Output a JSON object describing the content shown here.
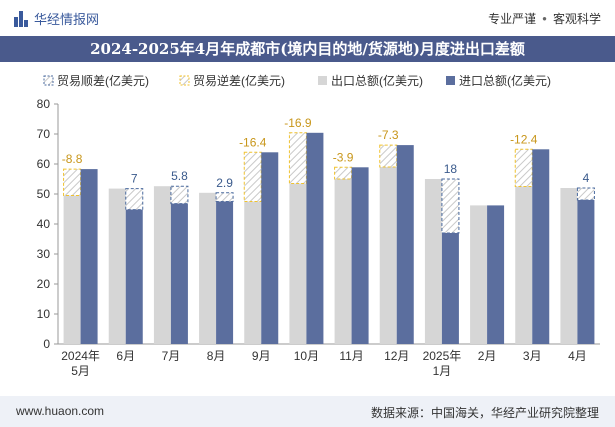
{
  "header": {
    "brand": "华经情报网",
    "right_a": "专业严谨",
    "right_sep": "●",
    "right_b": "客观科学"
  },
  "title": "2024-2025年4月年成都市(境内目的地/货源地)月度进出口差额",
  "footer": {
    "left": "www.huaon.com",
    "right": "数据来源：中国海关，华经产业研究院整理"
  },
  "watermark": "华经产业研究院",
  "colors": {
    "export": "#d6d6d6",
    "import": "#5b6e9e",
    "surplus_border": "#4a6a9e",
    "deficit_border": "#f0c22e",
    "hatch": "#c9c9c9"
  },
  "chart_data": {
    "type": "bar",
    "categories": [
      "2024年\n5月",
      "6月",
      "7月",
      "8月",
      "9月",
      "10月",
      "11月",
      "12月",
      "2025年\n1月",
      "2月",
      "3月",
      "4月"
    ],
    "series": [
      {
        "name": "出口总额(亿美元)",
        "values": [
          49.5,
          51.8,
          52.6,
          50.4,
          47.5,
          53.5,
          55.0,
          59.0,
          55.0,
          46.2,
          52.5,
          52.0
        ]
      },
      {
        "name": "进口总额(亿美元)",
        "values": [
          58.3,
          44.8,
          46.8,
          47.5,
          63.9,
          70.4,
          58.9,
          66.3,
          37.0,
          46.2,
          64.9,
          48.0
        ]
      }
    ],
    "balance": [
      -8.8,
      7,
      5.8,
      2.9,
      -16.4,
      -16.9,
      -3.9,
      -7.3,
      18,
      null,
      -12.4,
      4
    ],
    "balance_labels": [
      "-8.8",
      "7",
      "5.8",
      "2.9",
      "-16.4",
      "-16.9",
      "-3.9",
      "-7.3",
      "18",
      "",
      "-12.4",
      "4"
    ],
    "legend": [
      "贸易顺差(亿美元)",
      "贸易逆差(亿美元)",
      "出口总额(亿美元)",
      "进口总额(亿美元)"
    ],
    "legend_position": "top",
    "ylim": [
      0,
      80
    ],
    "yticks": [
      0,
      10,
      20,
      30,
      40,
      50,
      60,
      70,
      80
    ],
    "grid": false
  }
}
